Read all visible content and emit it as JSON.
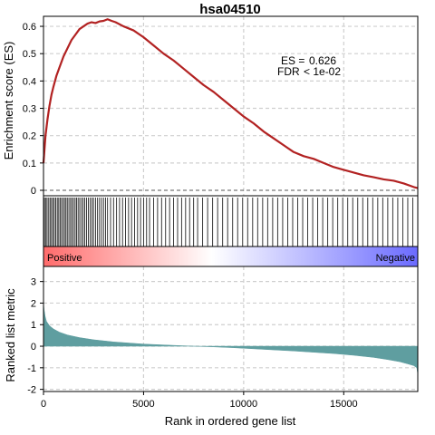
{
  "chart_data": {
    "type": "line",
    "title": "hsa04510",
    "xlabel": "Rank in ordered gene list",
    "es_panel": {
      "ylabel": "Enrichment score (ES)",
      "ylim": [
        0,
        0.63
      ],
      "yticks": [
        "0",
        "0.1",
        "0.2",
        "0.3",
        "0.4",
        "0.5",
        "0.6"
      ],
      "annotation": {
        "es_label": "ES =",
        "es_value": "0.626",
        "fdr_label": "FDR",
        "fdr_value": "< 1e-02"
      },
      "line_color": "#b22222",
      "series": [
        {
          "x": [
            0,
            100,
            200,
            300,
            400,
            500,
            650,
            800,
            1000,
            1200,
            1400,
            1600,
            1800,
            2000,
            2200,
            2400,
            2600,
            2800,
            3000,
            3200,
            3400,
            3600,
            4000,
            4500,
            5000,
            5500,
            6000,
            6500,
            7000,
            7500,
            8000,
            8500,
            9000,
            9500,
            10000,
            10500,
            11000,
            11500,
            12000,
            12500,
            13000,
            13500,
            14000,
            14500,
            15000,
            15500,
            16000,
            16500,
            17000,
            17500,
            18000,
            18500,
            18700
          ],
          "y": [
            0.1,
            0.2,
            0.26,
            0.31,
            0.35,
            0.38,
            0.42,
            0.45,
            0.49,
            0.52,
            0.55,
            0.57,
            0.59,
            0.6,
            0.61,
            0.615,
            0.612,
            0.618,
            0.62,
            0.626,
            0.62,
            0.615,
            0.6,
            0.585,
            0.56,
            0.53,
            0.5,
            0.475,
            0.445,
            0.415,
            0.385,
            0.36,
            0.33,
            0.3,
            0.27,
            0.245,
            0.215,
            0.19,
            0.165,
            0.14,
            0.125,
            0.115,
            0.1,
            0.085,
            0.075,
            0.065,
            0.055,
            0.048,
            0.04,
            0.035,
            0.025,
            0.012,
            0.008
          ]
        }
      ]
    },
    "hits_panel": {
      "hit_positions": [
        50,
        120,
        180,
        260,
        330,
        400,
        470,
        540,
        610,
        690,
        760,
        830,
        900,
        980,
        1050,
        1120,
        1190,
        1270,
        1350,
        1420,
        1500,
        1580,
        1650,
        1730,
        1810,
        1900,
        1980,
        2060,
        2150,
        2240,
        2330,
        2420,
        2500,
        2600,
        2700,
        2800,
        2900,
        3000,
        3100,
        3200,
        3350,
        3500,
        3650,
        3800,
        3950,
        4100,
        4250,
        4400,
        4550,
        4700,
        4850,
        5000,
        5150,
        5300,
        5500,
        5700,
        5900,
        6100,
        6300,
        6500,
        6700,
        6900,
        7100,
        7300,
        7500,
        7700,
        7950,
        8200,
        8450,
        8700,
        8950,
        9200,
        9450,
        9700,
        9950,
        10200,
        10450,
        10700,
        10950,
        11200,
        11450,
        11700,
        11950,
        12200,
        12450,
        12700,
        12950,
        13200,
        13450,
        13700,
        13950,
        14200,
        14450,
        14700,
        14950,
        15200,
        15450,
        15700,
        15950,
        16200,
        16450,
        16700,
        16950,
        17200,
        17450,
        17700,
        17950,
        18200,
        18450
      ],
      "gradient_left_label": "Positive",
      "gradient_right_label": "Negative",
      "gradient_left_color": "#ff6b6b",
      "gradient_mid_color": "#ffffff",
      "gradient_right_color": "#6b6bff"
    },
    "metric_panel": {
      "ylabel": "Ranked list metric",
      "ylim": [
        -2.1,
        3.7
      ],
      "yticks": [
        "-2",
        "-1",
        "0",
        "1",
        "2",
        "3"
      ],
      "fill_color": "#5f9ea0",
      "series": [
        {
          "x": [
            0,
            30,
            80,
            150,
            300,
            500,
            800,
            1200,
            1800,
            2500,
            3500,
            5000,
            6500,
            7500,
            8500,
            9500,
            10500,
            11500,
            12500,
            13500,
            14500,
            15500,
            16500,
            17200,
            17800,
            18200,
            18500,
            18650,
            18700
          ],
          "y": [
            2.0,
            1.7,
            1.4,
            1.15,
            0.95,
            0.8,
            0.65,
            0.52,
            0.4,
            0.3,
            0.2,
            0.1,
            0.04,
            0.0,
            -0.03,
            -0.07,
            -0.12,
            -0.17,
            -0.22,
            -0.28,
            -0.34,
            -0.42,
            -0.52,
            -0.62,
            -0.72,
            -0.82,
            -0.9,
            -1.0,
            -1.3
          ]
        }
      ]
    },
    "x_axis": {
      "xlim": [
        0,
        18700
      ],
      "ticks": [
        "0",
        "5000",
        "10000",
        "15000"
      ],
      "tick_values": [
        0,
        5000,
        10000,
        15000
      ]
    },
    "grid": true
  }
}
